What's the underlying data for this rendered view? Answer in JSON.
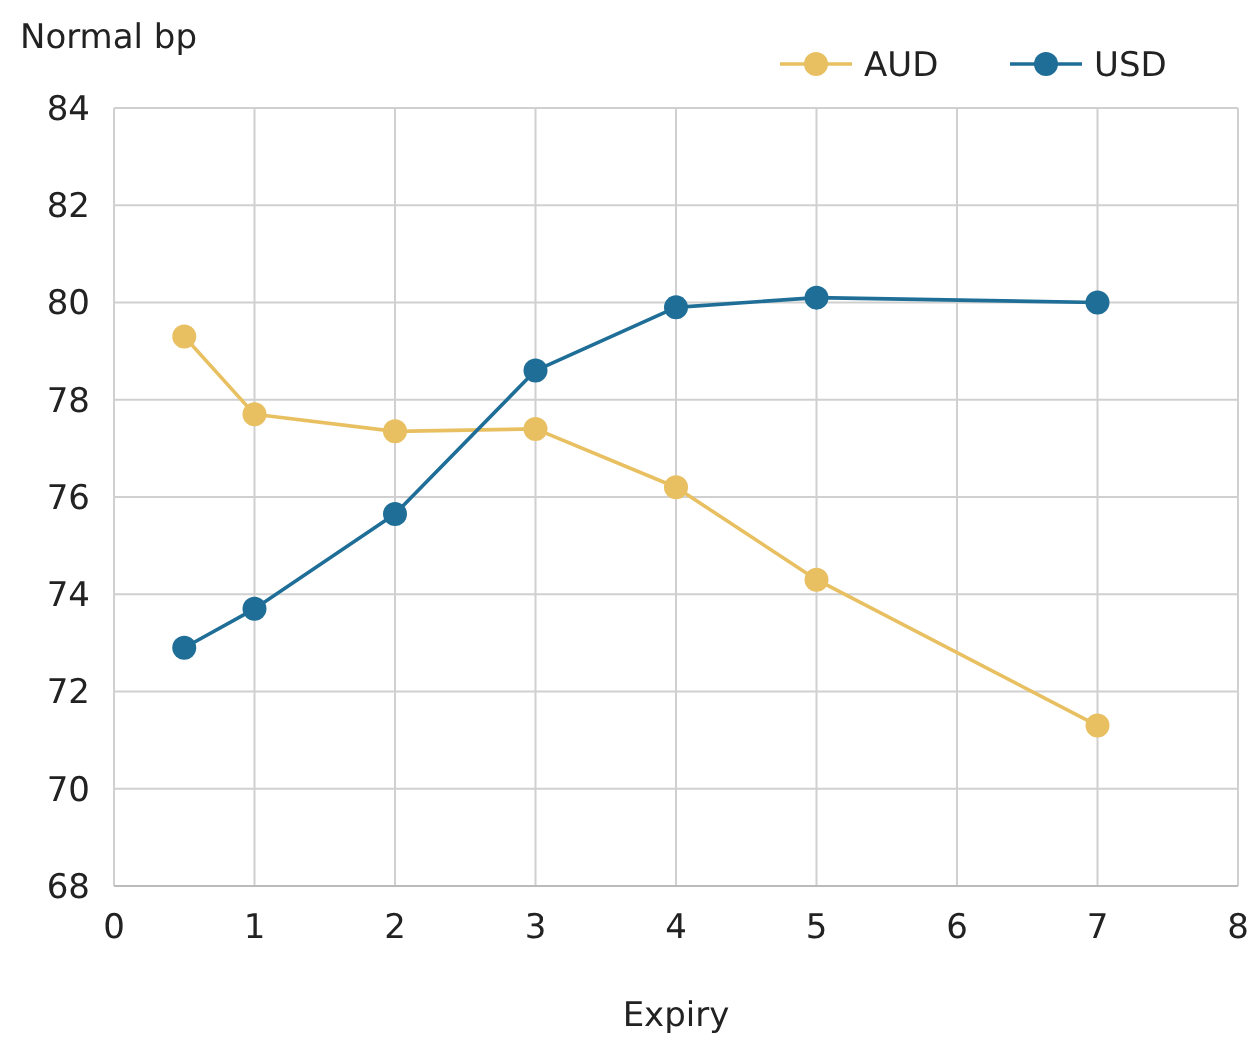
{
  "chart_data": {
    "type": "line",
    "xlabel": "Expiry",
    "ylabel": "Normal bp",
    "x": [
      0.5,
      1,
      2,
      3,
      4,
      5,
      7
    ],
    "series": [
      {
        "name": "AUD",
        "color": "#e8c062",
        "values": [
          79.3,
          77.7,
          77.35,
          77.4,
          76.2,
          74.3,
          71.3
        ]
      },
      {
        "name": "USD",
        "color": "#1f6e98",
        "values": [
          72.9,
          73.7,
          75.65,
          78.6,
          79.9,
          80.1,
          80.0
        ]
      }
    ],
    "xlim": [
      0,
      8
    ],
    "xticks": [
      0,
      1,
      2,
      3,
      4,
      5,
      6,
      7,
      8
    ],
    "ylim": [
      68,
      84
    ],
    "yticks": [
      68,
      70,
      72,
      74,
      76,
      78,
      80,
      82,
      84
    ],
    "grid": true,
    "legend": "top right",
    "marker": "circle",
    "line_style": "solid"
  }
}
